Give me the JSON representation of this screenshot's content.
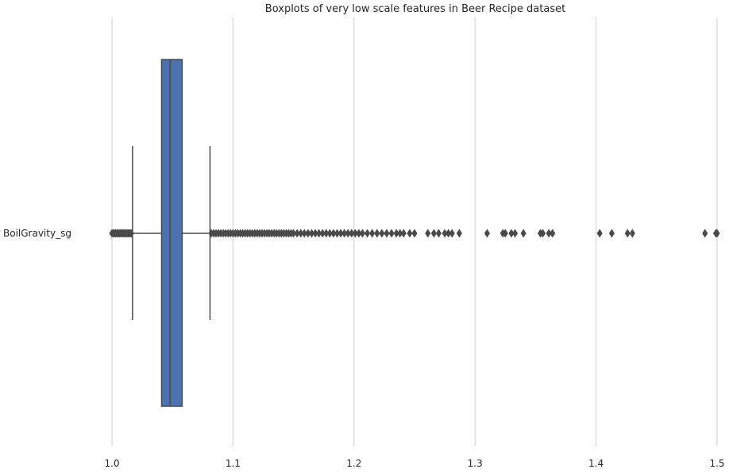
{
  "chart_data": {
    "type": "boxplot",
    "orientation": "horizontal",
    "title": "Boxplots of very low scale features in Beer Recipe dataset",
    "xlabel": "",
    "ylabel": "",
    "xlim": [
      1.0,
      1.5
    ],
    "x_ticks": [
      1.0,
      1.1,
      1.2,
      1.3,
      1.4,
      1.5
    ],
    "x_tick_labels": [
      "1.0",
      "1.1",
      "1.2",
      "1.3",
      "1.4",
      "1.5"
    ],
    "grid": "vertical",
    "categories": [
      "BoilGravity_sg"
    ],
    "series": [
      {
        "box_color": "#4c72b0",
        "line_color": "#4a4a4a",
        "whisker_low": 1.017,
        "q1": 1.041,
        "median": 1.048,
        "q3": 1.058,
        "whisker_high": 1.081,
        "outliers": [
          1.0,
          1.001,
          1.002,
          1.003,
          1.004,
          1.005,
          1.006,
          1.007,
          1.008,
          1.009,
          1.01,
          1.011,
          1.012,
          1.013,
          1.014,
          1.015,
          1.016,
          1.082,
          1.084,
          1.086,
          1.088,
          1.09,
          1.092,
          1.094,
          1.096,
          1.098,
          1.1,
          1.102,
          1.104,
          1.106,
          1.108,
          1.11,
          1.112,
          1.114,
          1.116,
          1.118,
          1.12,
          1.122,
          1.124,
          1.126,
          1.128,
          1.13,
          1.132,
          1.134,
          1.136,
          1.138,
          1.14,
          1.142,
          1.144,
          1.146,
          1.148,
          1.15,
          1.153,
          1.156,
          1.159,
          1.162,
          1.165,
          1.168,
          1.171,
          1.174,
          1.177,
          1.18,
          1.183,
          1.186,
          1.189,
          1.192,
          1.195,
          1.198,
          1.201,
          1.204,
          1.207,
          1.211,
          1.215,
          1.219,
          1.223,
          1.227,
          1.231,
          1.235,
          1.238,
          1.241,
          1.246,
          1.25,
          1.261,
          1.266,
          1.27,
          1.275,
          1.278,
          1.281,
          1.287,
          1.31,
          1.323,
          1.325,
          1.33,
          1.333,
          1.34,
          1.354,
          1.356,
          1.361,
          1.364,
          1.403,
          1.413,
          1.426,
          1.43,
          1.49,
          1.499,
          1.5
        ]
      }
    ]
  }
}
